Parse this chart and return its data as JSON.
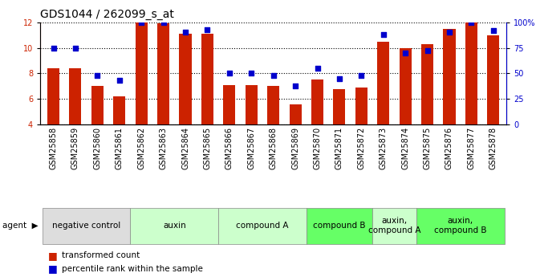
{
  "title": "GDS1044 / 262099_s_at",
  "samples": [
    "GSM25858",
    "GSM25859",
    "GSM25860",
    "GSM25861",
    "GSM25862",
    "GSM25863",
    "GSM25864",
    "GSM25865",
    "GSM25866",
    "GSM25867",
    "GSM25868",
    "GSM25869",
    "GSM25870",
    "GSM25871",
    "GSM25872",
    "GSM25873",
    "GSM25874",
    "GSM25875",
    "GSM25876",
    "GSM25877",
    "GSM25878"
  ],
  "bar_values": [
    8.4,
    8.4,
    7.0,
    6.2,
    12.0,
    11.9,
    11.1,
    11.1,
    7.1,
    7.1,
    7.0,
    5.6,
    7.5,
    6.8,
    6.9,
    10.5,
    10.0,
    10.3,
    11.5,
    12.0,
    11.0
  ],
  "dot_values": [
    75,
    75,
    48,
    43,
    100,
    100,
    90,
    93,
    50,
    50,
    48,
    38,
    55,
    45,
    48,
    88,
    70,
    72,
    90,
    100,
    92
  ],
  "bar_color": "#cc2200",
  "dot_color": "#0000cc",
  "ylim_left": [
    4,
    12
  ],
  "ylim_right": [
    0,
    100
  ],
  "yticks_left": [
    4,
    6,
    8,
    10,
    12
  ],
  "yticks_right": [
    0,
    25,
    50,
    75,
    100
  ],
  "ytick_labels_right": [
    "0",
    "25",
    "50",
    "75",
    "100%"
  ],
  "groups": [
    {
      "label": "negative control",
      "start": 0,
      "end": 4,
      "color": "#dddddd"
    },
    {
      "label": "auxin",
      "start": 4,
      "end": 8,
      "color": "#ccffcc"
    },
    {
      "label": "compound A",
      "start": 8,
      "end": 12,
      "color": "#ccffcc"
    },
    {
      "label": "compound B",
      "start": 12,
      "end": 15,
      "color": "#66ff66"
    },
    {
      "label": "auxin,\ncompound A",
      "start": 15,
      "end": 17,
      "color": "#ccffcc"
    },
    {
      "label": "auxin,\ncompound B",
      "start": 17,
      "end": 21,
      "color": "#66ff66"
    }
  ],
  "legend_bar_label": "transformed count",
  "legend_dot_label": "percentile rank within the sample",
  "agent_label": "agent",
  "title_fontsize": 10,
  "tick_fontsize": 7,
  "group_fontsize": 7.5,
  "background_color": "#ffffff"
}
